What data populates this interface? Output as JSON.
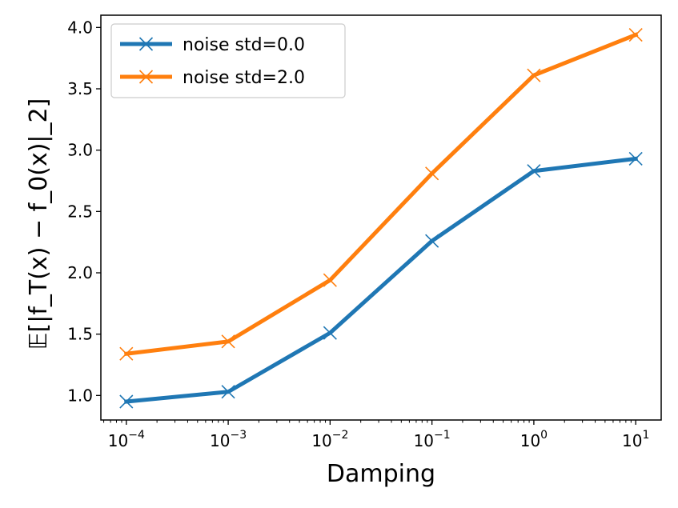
{
  "chart_data": {
    "type": "line",
    "xscale": "log",
    "x": [
      0.0001,
      0.001,
      0.01,
      0.1,
      1,
      10
    ],
    "series": [
      {
        "name": "noise std=0.0",
        "color": "#1f77b4",
        "marker": "x",
        "values": [
          0.95,
          1.03,
          1.51,
          2.26,
          2.83,
          2.93
        ]
      },
      {
        "name": "noise std=2.0",
        "color": "#ff7f0e",
        "marker": "x",
        "values": [
          1.34,
          1.44,
          1.94,
          2.81,
          3.61,
          3.94
        ]
      }
    ],
    "xlabel": "Damping",
    "ylabel": "𝔼[|f_T(x) − f_0(x)|_2]",
    "ylim": [
      0.8,
      4.1
    ],
    "yticks": [
      "1.0",
      "1.5",
      "2.0",
      "2.5",
      "3.0",
      "3.5",
      "4.0"
    ],
    "xticks": [
      {
        "base": "10",
        "exp": "−4"
      },
      {
        "base": "10",
        "exp": "−3"
      },
      {
        "base": "10",
        "exp": "−2"
      },
      {
        "base": "10",
        "exp": "−1"
      },
      {
        "base": "10",
        "exp": "0"
      },
      {
        "base": "10",
        "exp": "1"
      }
    ],
    "legend_position": "top-left",
    "grid": false
  }
}
